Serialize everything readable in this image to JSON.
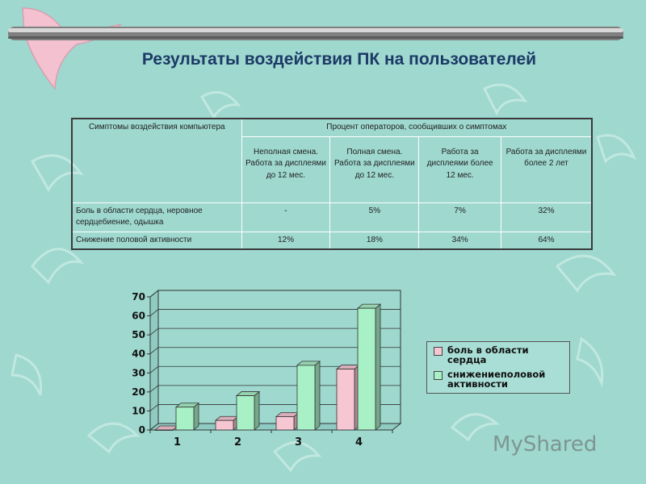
{
  "title": "Результаты воздействия ПК на пользователей",
  "table": {
    "col0_header": "Симптомы воздействия компьютера",
    "group_header": "Процент операторов, сообщивших о симптомах",
    "sub_headers": [
      "Неполная смена. Работа за дисплеями до 12 мес.",
      "Полная смена. Работа за дисплеями до 12 мес.",
      "Работа за дисплеями более 12 мес.",
      "Работа за дисплеями более 2 лет"
    ],
    "rows": [
      {
        "label": "Боль в области сердца, неровное сердцебиение, одышка",
        "values": [
          "-",
          "5%",
          "7%",
          "32%"
        ]
      },
      {
        "label": "Снижение половой активности",
        "values": [
          "12%",
          "18%",
          "34%",
          "64%"
        ]
      }
    ]
  },
  "chart_data": {
    "type": "bar",
    "categories": [
      "1",
      "2",
      "3",
      "4"
    ],
    "series": [
      {
        "name": "боль в области сердца",
        "values": [
          0,
          5,
          7,
          32
        ],
        "color": "#f6c6d3"
      },
      {
        "name": "снижениеполовой активности",
        "values": [
          12,
          18,
          34,
          64
        ],
        "color": "#a8f0c6"
      }
    ],
    "ylim": [
      0,
      70
    ],
    "yticks": [
      0,
      10,
      20,
      30,
      40,
      50,
      60,
      70
    ],
    "grid": true,
    "legend_position": "right"
  },
  "legend": {
    "items": [
      {
        "label": "боль в области сердца",
        "color": "#f6c6d3"
      },
      {
        "label": "снижениеполовой активности",
        "color": "#a8f0c6"
      }
    ]
  },
  "watermark": "MyShared",
  "colors": {
    "background": "#9ed8cf",
    "title": "#1d3a66"
  }
}
